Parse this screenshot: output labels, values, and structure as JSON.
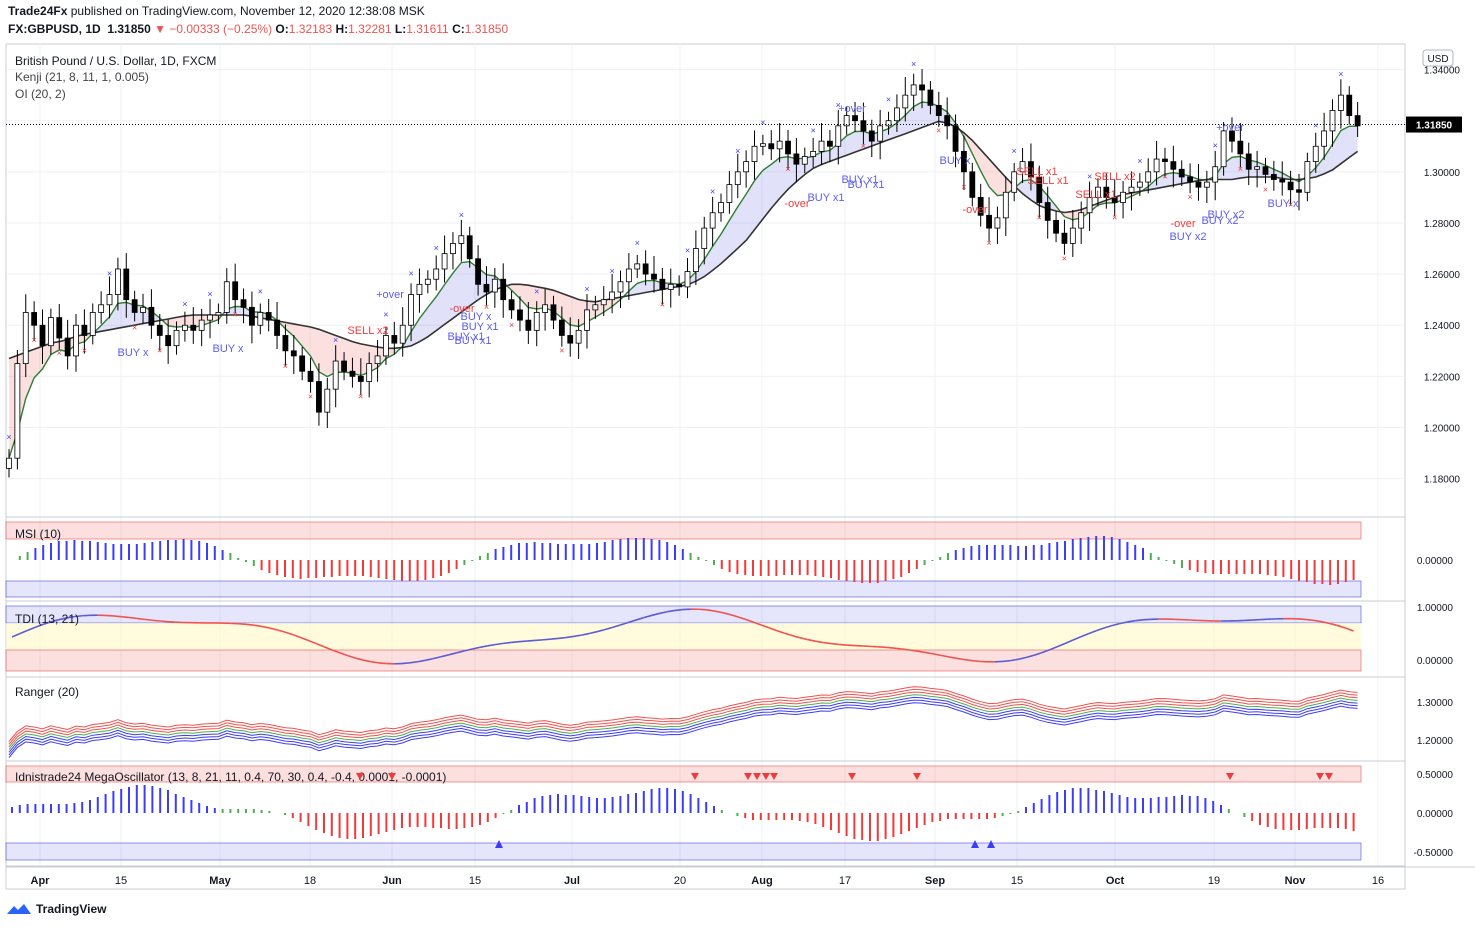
{
  "header": {
    "publisher": "Trade24Fx",
    "published_on": "published on TradingView.com, November 12, 2020 12:38:08 MSK",
    "symbol": "FX:GBPUSD, 1D",
    "last": "1.31850",
    "change": "−0.00333 (−0.25%)",
    "open_label": "O:",
    "open": "1.32183",
    "high_label": "H:",
    "high": "1.32281",
    "low_label": "L:",
    "low": "1.31611",
    "close_label": "C:",
    "close": "1.31850"
  },
  "legend": {
    "title": "British Pound / U.S. Dollar, 1D, FXCM",
    "kenji": "Kenji (21, 8, 11, 1, 0.005)",
    "oi": "OI (20, 2)"
  },
  "footer": {
    "brand": "TradingView",
    "logo_icon": "tradingview-logo-icon"
  },
  "colors": {
    "up": "#ffffff",
    "down": "#000000",
    "blue": "#3d3df5",
    "red": "#ef3b3b",
    "green": "#4caf50",
    "grid": "#eef0f3",
    "price_tag": "#000000"
  },
  "chart_data": {
    "type": "candlestick",
    "currency": "USD",
    "last_price": "1.31850",
    "price_ticks": [
      "1.34000",
      "1.32000",
      "1.30000",
      "1.28000",
      "1.26000",
      "1.24000",
      "1.22000",
      "1.20000",
      "1.18000"
    ],
    "price_tick_values": [
      1.34,
      1.32,
      1.3,
      1.28,
      1.26,
      1.24,
      1.22,
      1.2,
      1.18
    ],
    "ylim": [
      1.165,
      1.35
    ],
    "x_labels": [
      "Apr",
      "15",
      "May",
      "18",
      "Jun",
      "15",
      "Jul",
      "20",
      "Aug",
      "17",
      "Sep",
      "15",
      "Oct",
      "19",
      "Nov",
      "16"
    ],
    "x_label_bold": [
      "Apr",
      "May",
      "Jun",
      "Jul",
      "Aug",
      "Sep",
      "Oct",
      "Nov"
    ],
    "close_series": [
      1.188,
      1.225,
      1.245,
      1.24,
      1.232,
      1.243,
      1.235,
      1.228,
      1.24,
      1.236,
      1.245,
      1.248,
      1.252,
      1.262,
      1.25,
      1.245,
      1.247,
      1.24,
      1.236,
      1.232,
      1.238,
      1.24,
      1.238,
      1.242,
      1.244,
      1.245,
      1.257,
      1.25,
      1.247,
      1.24,
      1.245,
      1.242,
      1.236,
      1.23,
      1.228,
      1.222,
      1.218,
      1.206,
      1.215,
      1.226,
      1.222,
      1.22,
      1.218,
      1.225,
      1.228,
      1.236,
      1.233,
      1.24,
      1.252,
      1.256,
      1.258,
      1.262,
      1.268,
      1.272,
      1.275,
      1.266,
      1.256,
      1.253,
      1.258,
      1.25,
      1.246,
      1.242,
      1.238,
      1.245,
      1.248,
      1.242,
      1.236,
      1.233,
      1.238,
      1.246,
      1.248,
      1.25,
      1.253,
      1.257,
      1.262,
      1.264,
      1.26,
      1.258,
      1.254,
      1.256,
      1.255,
      1.261,
      1.27,
      1.278,
      1.284,
      1.288,
      1.295,
      1.3,
      1.304,
      1.31,
      1.311,
      1.309,
      1.312,
      1.307,
      1.303,
      1.306,
      1.308,
      1.312,
      1.31,
      1.318,
      1.322,
      1.32,
      1.316,
      1.312,
      1.318,
      1.32,
      1.325,
      1.33,
      1.334,
      1.332,
      1.326,
      1.322,
      1.318,
      1.308,
      1.3,
      1.29,
      1.283,
      1.278,
      1.282,
      1.292,
      1.3,
      1.304,
      1.298,
      1.288,
      1.281,
      1.276,
      1.272,
      1.278,
      1.284,
      1.29,
      1.294,
      1.29,
      1.288,
      1.292,
      1.294,
      1.296,
      1.3,
      1.305,
      1.304,
      1.301,
      1.298,
      1.296,
      1.294,
      1.296,
      1.302,
      1.316,
      1.312,
      1.307,
      1.301,
      1.302,
      1.299,
      1.297,
      1.296,
      1.293,
      1.292,
      1.304,
      1.31,
      1.316,
      1.324,
      1.33,
      1.322,
      1.318
    ],
    "kenji_ma_series": [
      1.227,
      1.229,
      1.231,
      1.233,
      1.234,
      1.236,
      1.237,
      1.238,
      1.239,
      1.24,
      1.241,
      1.242,
      1.243,
      1.244,
      1.244,
      1.244,
      1.244,
      1.244,
      1.243,
      1.242,
      1.241,
      1.24,
      1.239,
      1.237,
      1.235,
      1.233,
      1.232,
      1.231,
      1.231,
      1.232,
      1.235,
      1.239,
      1.243,
      1.247,
      1.251,
      1.254,
      1.256,
      1.256,
      1.255,
      1.254,
      1.252,
      1.25,
      1.249,
      1.25,
      1.251,
      1.252,
      1.253,
      1.254,
      1.255,
      1.256,
      1.259,
      1.263,
      1.268,
      1.273,
      1.28,
      1.287,
      1.293,
      1.298,
      1.302,
      1.304,
      1.306,
      1.308,
      1.31,
      1.312,
      1.314,
      1.316,
      1.318,
      1.32,
      1.318,
      1.314,
      1.308,
      1.302,
      1.296,
      1.291,
      1.287,
      1.285,
      1.284,
      1.285,
      1.287,
      1.289,
      1.291,
      1.292,
      1.293,
      1.294,
      1.295,
      1.296,
      1.297,
      1.297,
      1.297,
      1.298,
      1.298,
      1.298,
      1.297,
      1.297,
      1.298,
      1.3,
      1.304,
      1.308
    ],
    "msi": {
      "title": "MSI (10)",
      "ticks": [
        "0.00000"
      ]
    },
    "tdi": {
      "title": "TDI (13, 21)",
      "ticks": [
        "1.00000",
        "0.00000"
      ]
    },
    "ranger": {
      "title": "Ranger (20)",
      "ticks": [
        "1.30000",
        "1.20000"
      ]
    },
    "mega": {
      "title": "Idnistrade24 MegaOscillator (13, 8, 21, 11, 0.4, 70, 30, 0.4, -0.4, 0.0001, -0.0001)",
      "ticks": [
        "0.50000",
        "0.00000",
        "-0.50000"
      ]
    },
    "annotations": [
      "BUY x",
      "BUY x",
      "SELL x2",
      "+over",
      "-over",
      "BUY x",
      "BUY x1",
      "BUY x1",
      "BUY x1",
      "-over",
      "BUY x1",
      "BUY x1",
      "+over",
      "BUY x1",
      "BUY x",
      "-over",
      "SELL x1",
      "SELL x1",
      "SELL x2",
      "SELL x1",
      "-over",
      "BUY x2",
      "BUY x2",
      "BUY x2",
      "BUY x",
      "+over"
    ]
  }
}
